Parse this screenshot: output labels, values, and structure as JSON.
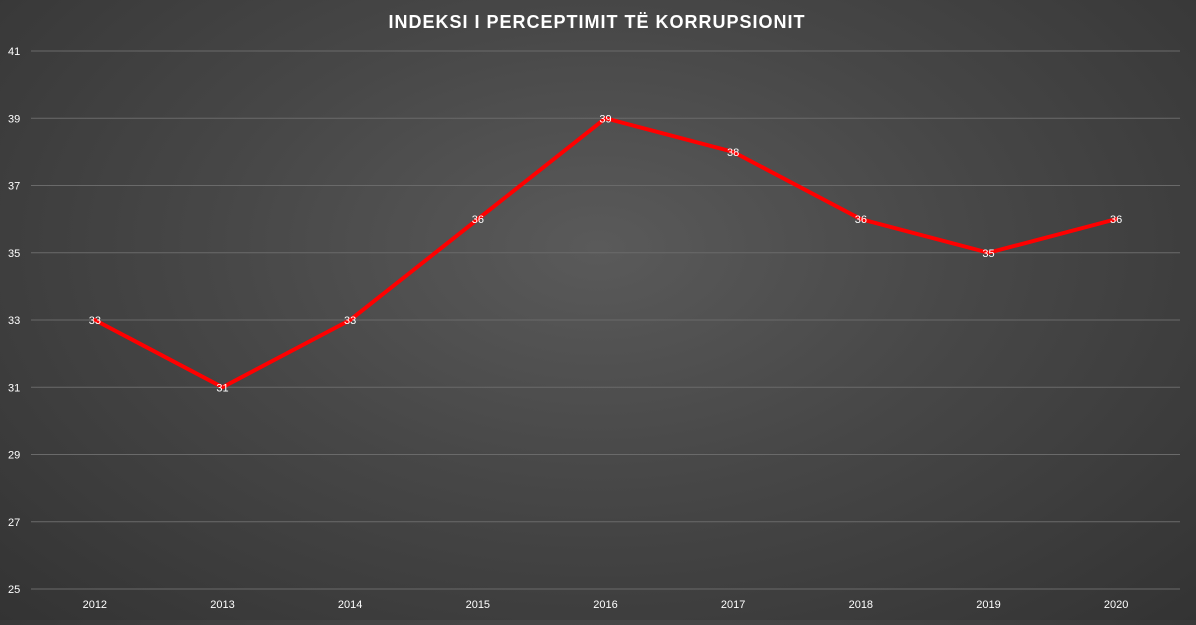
{
  "chart_data": {
    "type": "line",
    "title": "INDEKSI I PERCEPTIMIT TË KORRUPSIONIT",
    "xlabel": "",
    "ylabel": "",
    "categories": [
      "2012",
      "2013",
      "2014",
      "2015",
      "2016",
      "2017",
      "2018",
      "2019",
      "2020"
    ],
    "series": [
      {
        "values": [
          33,
          31,
          33,
          36,
          39,
          38,
          36,
          35,
          36
        ],
        "color": "#ff0000"
      }
    ],
    "ylim": [
      25,
      41
    ],
    "yticks": [
      25,
      27,
      29,
      31,
      33,
      35,
      37,
      39,
      41
    ],
    "grid": true,
    "data_labels": true,
    "legend": "none"
  },
  "colors": {
    "background": "#474747",
    "text": "#ffffff",
    "gridline": "#6a6a6a",
    "line": "#ff0000"
  }
}
